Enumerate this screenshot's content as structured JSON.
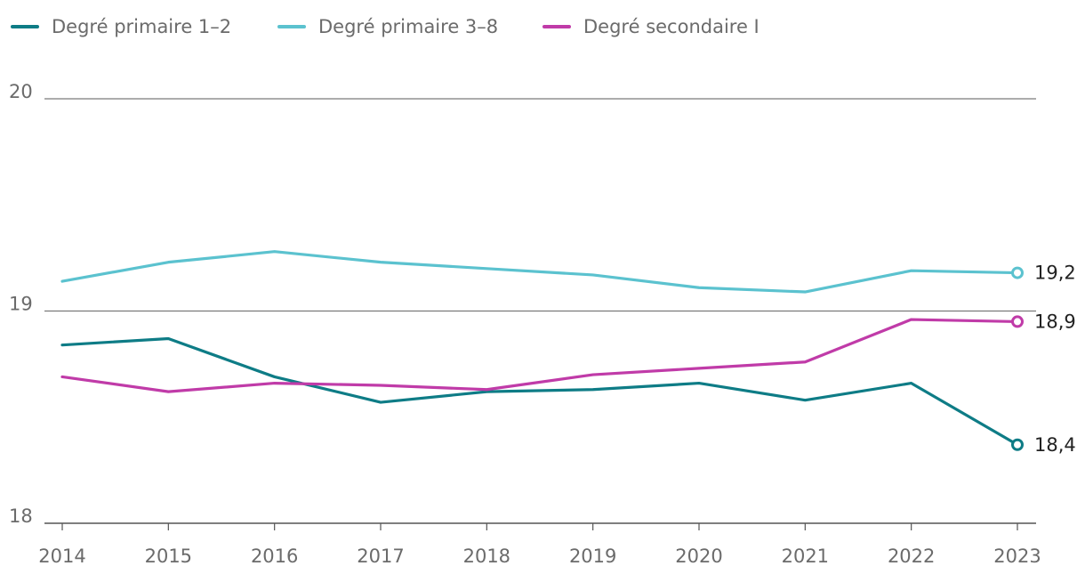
{
  "chart_data": {
    "type": "line",
    "title": "",
    "xlabel": "",
    "ylabel": "",
    "categories": [
      "2014",
      "2015",
      "2016",
      "2017",
      "2018",
      "2019",
      "2020",
      "2021",
      "2022",
      "2023"
    ],
    "ylim": [
      18,
      20
    ],
    "yticks": [
      18,
      19,
      20
    ],
    "ytick_labels": [
      "18",
      "19",
      "20"
    ],
    "legend_position": "top-left",
    "series": [
      {
        "name": "Degré primaire 1–2",
        "color": "#0e7c86",
        "values": [
          18.84,
          18.87,
          18.69,
          18.57,
          18.62,
          18.63,
          18.66,
          18.58,
          18.66,
          18.37
        ],
        "end_label": "18,4"
      },
      {
        "name": "Degré primaire 3–8",
        "color": "#5bc2cf",
        "values": [
          19.14,
          19.23,
          19.28,
          19.23,
          19.2,
          19.17,
          19.11,
          19.09,
          19.19,
          19.18
        ],
        "end_label": "19,2"
      },
      {
        "name": "Degré secondaire I",
        "color": "#c03ba8",
        "values": [
          18.69,
          18.62,
          18.66,
          18.65,
          18.63,
          18.7,
          18.73,
          18.76,
          18.96,
          18.95
        ],
        "end_label": "18,9"
      }
    ]
  }
}
